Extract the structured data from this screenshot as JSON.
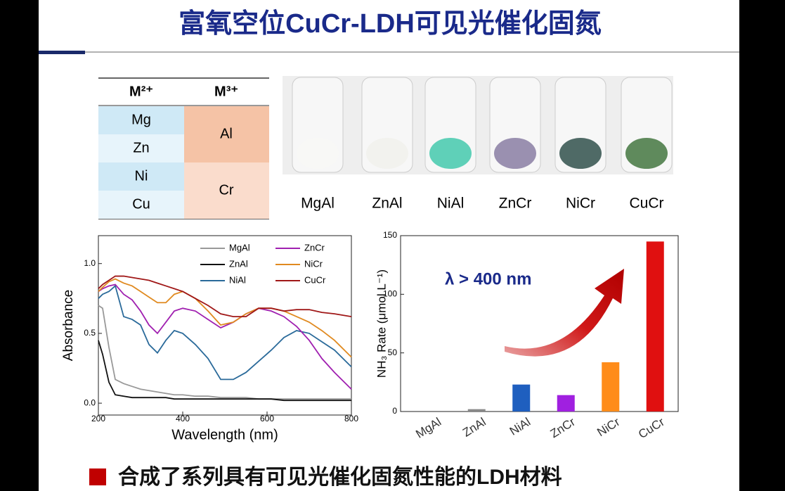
{
  "header": {
    "title": "富氧空位CuCr-LDH可见光催化固氮"
  },
  "table": {
    "header": [
      "M²⁺",
      "M³⁺"
    ],
    "m2": [
      "Mg",
      "Zn",
      "Ni",
      "Cu"
    ],
    "m3": [
      "Al",
      "Cr"
    ]
  },
  "photo": {
    "labels": [
      "MgAl",
      "ZnAl",
      "NiAl",
      "ZnCr",
      "NiCr",
      "CuCr"
    ]
  },
  "chart_data": [
    {
      "type": "line",
      "xlabel": "Wavelength (nm)",
      "ylabel": "Absorbance",
      "x": [
        200,
        210,
        225,
        240,
        260,
        280,
        300,
        320,
        340,
        360,
        380,
        400,
        430,
        460,
        490,
        520,
        550,
        580,
        610,
        640,
        670,
        700,
        730,
        760,
        800
      ],
      "xlim": [
        200,
        800
      ],
      "xticks": [
        200,
        400,
        600,
        800
      ],
      "ylim": [
        -0.085,
        1.2
      ],
      "yticks": [
        {
          "value": 0,
          "label": "0.0"
        },
        {
          "value": 0.5,
          "label": "0.5"
        },
        {
          "value": 1,
          "label": "1.0"
        }
      ],
      "series": [
        {
          "name": "MgAl",
          "color": "#999999",
          "values": [
            0.7,
            0.68,
            0.4,
            0.17,
            0.14,
            0.12,
            0.1,
            0.09,
            0.08,
            0.07,
            0.06,
            0.06,
            0.05,
            0.05,
            0.04,
            0.04,
            0.04,
            0.03,
            0.03,
            0.03,
            0.03,
            0.03,
            0.03,
            0.03,
            0.03
          ]
        },
        {
          "name": "ZnAl",
          "color": "#111111",
          "values": [
            0.45,
            0.35,
            0.15,
            0.06,
            0.05,
            0.04,
            0.04,
            0.04,
            0.04,
            0.04,
            0.03,
            0.03,
            0.03,
            0.03,
            0.03,
            0.03,
            0.03,
            0.03,
            0.03,
            0.02,
            0.02,
            0.02,
            0.02,
            0.02,
            0.02
          ]
        },
        {
          "name": "NiAl",
          "color": "#2a6a9a",
          "values": [
            0.75,
            0.78,
            0.8,
            0.84,
            0.62,
            0.6,
            0.56,
            0.42,
            0.36,
            0.45,
            0.52,
            0.5,
            0.42,
            0.32,
            0.17,
            0.17,
            0.22,
            0.3,
            0.38,
            0.47,
            0.52,
            0.5,
            0.44,
            0.38,
            0.26
          ]
        },
        {
          "name": "ZnCr",
          "color": "#a020b0",
          "values": [
            0.8,
            0.82,
            0.84,
            0.85,
            0.78,
            0.74,
            0.66,
            0.56,
            0.5,
            0.58,
            0.66,
            0.68,
            0.66,
            0.6,
            0.54,
            0.58,
            0.64,
            0.68,
            0.66,
            0.62,
            0.55,
            0.45,
            0.32,
            0.22,
            0.1
          ]
        },
        {
          "name": "NiCr",
          "color": "#e08a20",
          "values": [
            0.8,
            0.83,
            0.87,
            0.89,
            0.86,
            0.84,
            0.8,
            0.76,
            0.72,
            0.72,
            0.78,
            0.8,
            0.75,
            0.66,
            0.56,
            0.58,
            0.64,
            0.68,
            0.68,
            0.66,
            0.62,
            0.58,
            0.52,
            0.45,
            0.33
          ]
        },
        {
          "name": "CuCr",
          "color": "#a01818",
          "values": [
            0.82,
            0.85,
            0.88,
            0.91,
            0.91,
            0.9,
            0.89,
            0.88,
            0.86,
            0.84,
            0.82,
            0.8,
            0.75,
            0.7,
            0.64,
            0.62,
            0.62,
            0.68,
            0.68,
            0.66,
            0.67,
            0.67,
            0.65,
            0.64,
            0.62
          ]
        }
      ]
    },
    {
      "type": "bar",
      "ylabel": "NH₃ Rate (μmol L⁻¹)",
      "annotation": "λ > 400 nm",
      "categories": [
        "MgAl",
        "ZnAl",
        "NiAl",
        "ZnCr",
        "NiCr",
        "CuCr"
      ],
      "values": [
        0,
        2,
        23,
        14,
        42,
        145
      ],
      "colors": [
        "#888888",
        "#888888",
        "#1f5fbf",
        "#a020e0",
        "#ff8c1a",
        "#e01010"
      ],
      "ylim": [
        0,
        150
      ],
      "yticks": [
        0,
        50,
        100,
        150
      ]
    }
  ],
  "footer": {
    "text": "合成了系列具有可见光催化固氮性能的LDH材料"
  }
}
